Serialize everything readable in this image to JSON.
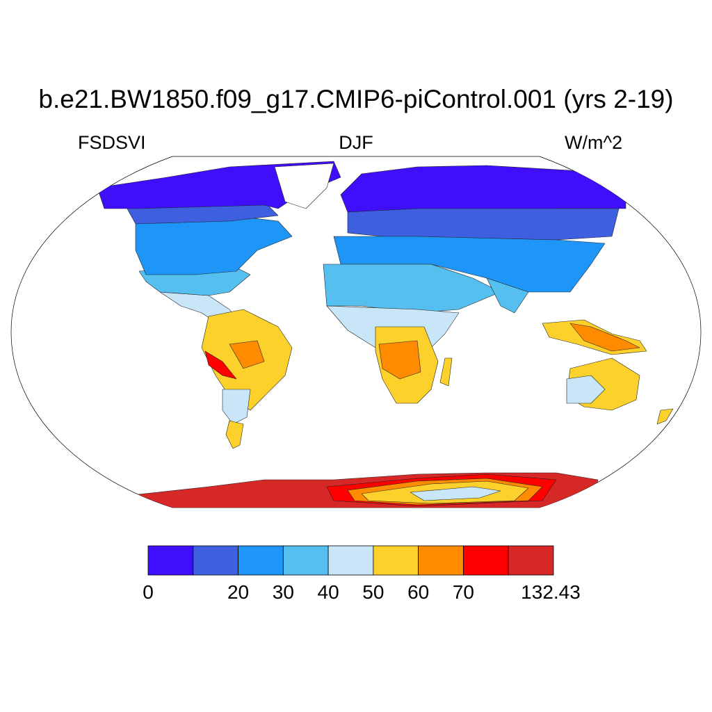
{
  "title": "b.e21.BW1850.f09_g17.CMIP6-piControl.001 (yrs 2-19)",
  "left_label": "FSDSVI",
  "center_label": "DJF",
  "right_label": "W/m^2",
  "colorbar": {
    "colors": [
      "#3f0ffb",
      "#3d5fe0",
      "#1e96f8",
      "#55bff0",
      "#c8e6f7",
      "#fdd12b",
      "#fe8b00",
      "#fe0000",
      "#d72828"
    ],
    "labels": [
      {
        "text": "0",
        "index": 0
      },
      {
        "text": "20",
        "index": 2
      },
      {
        "text": "30",
        "index": 3
      },
      {
        "text": "40",
        "index": 4
      },
      {
        "text": "50",
        "index": 5
      },
      {
        "text": "60",
        "index": 6
      },
      {
        "text": "70",
        "index": 7
      },
      {
        "text": "132.43",
        "index": 9
      }
    ]
  }
}
